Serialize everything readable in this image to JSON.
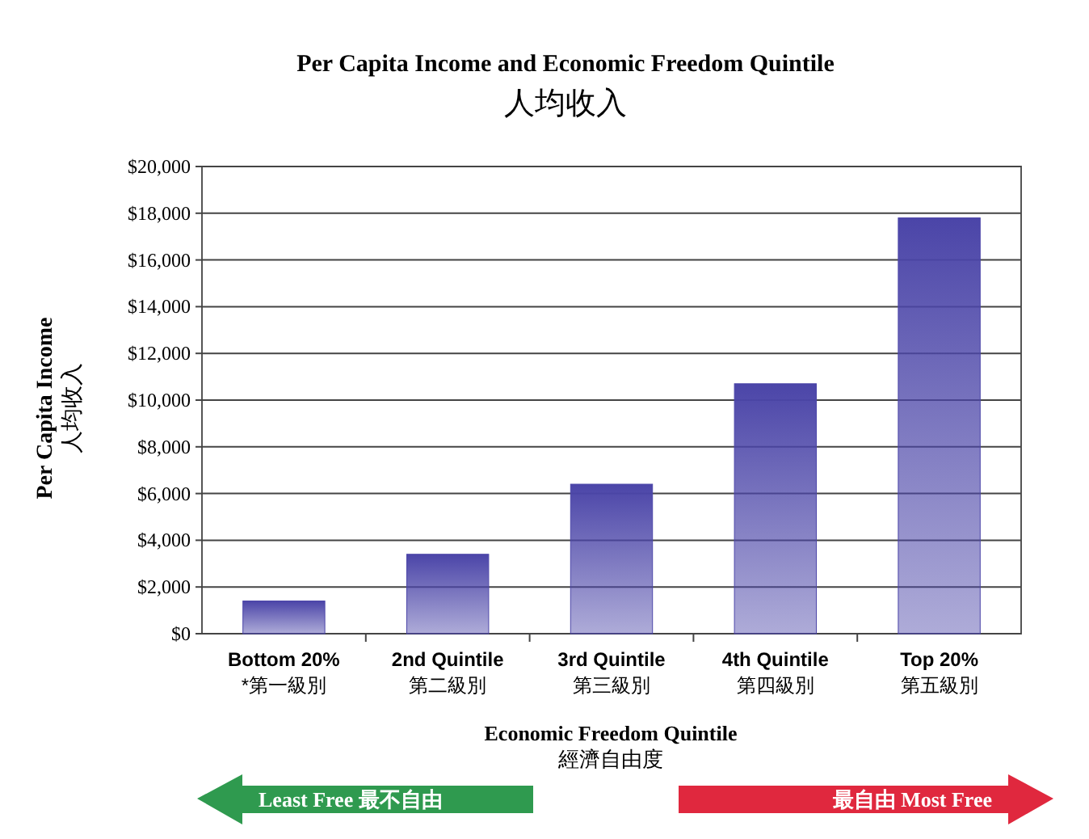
{
  "chart_data": {
    "type": "bar",
    "title": "Per Capita Income and Economic Freedom Quintile",
    "subtitle": "人均收入",
    "xlabel": "Economic Freedom Quintile\n經濟自由度",
    "ylabel": "Per Capita Income\n人均收入",
    "categories": [
      "Bottom 20%\n*第一級別",
      "2nd Quintile\n第二級別",
      "3rd Quintile\n第三級別",
      "4th Quintile\n第四級別",
      "Top 20%\n第五級別"
    ],
    "values": [
      1400,
      3400,
      6400,
      10700,
      17800
    ],
    "color": "#4b45a8",
    "ylim": [
      0,
      20000
    ],
    "yticks": [
      {
        "value": 0,
        "label": "$0"
      },
      {
        "value": 2000,
        "label": "$2,000"
      },
      {
        "value": 4000,
        "label": "$4,000"
      },
      {
        "value": 6000,
        "label": "$6,000"
      },
      {
        "value": 8000,
        "label": "$8,000"
      },
      {
        "value": 10000,
        "label": "$10,000"
      },
      {
        "value": 12000,
        "label": "$12,000"
      },
      {
        "value": 14000,
        "label": "$14,000"
      },
      {
        "value": 16000,
        "label": "$16,000"
      },
      {
        "value": 18000,
        "label": "$18,000"
      },
      {
        "value": 20000,
        "label": "$20,000"
      }
    ],
    "grid": "y",
    "annotations": [
      "Least Free 最不自由",
      "最自由 Most Free"
    ]
  }
}
